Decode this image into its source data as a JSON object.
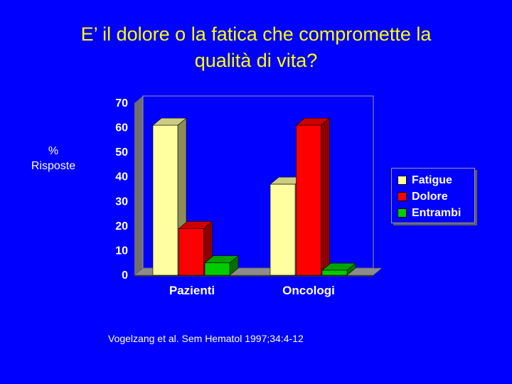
{
  "slide": {
    "title_line1": "E’ il dolore o la fatica che compromette la",
    "title_line2": "qualità di vita?",
    "citation": "Vogelzang et  al. Sem Hematol 1997;34:4-12"
  },
  "chart_data": {
    "type": "bar",
    "ylabel_line1": "%",
    "ylabel_line2": "Risposte",
    "categories": [
      "Pazienti",
      "Oncologi"
    ],
    "series": [
      {
        "name": "Fatigue",
        "values": [
          61,
          37
        ],
        "color": "#ffffa0"
      },
      {
        "name": "Dolore",
        "values": [
          19,
          61
        ],
        "color": "#ff0000"
      },
      {
        "name": "Entrambi",
        "values": [
          5,
          2
        ],
        "color": "#00cc00"
      }
    ],
    "ylim": [
      0,
      70
    ],
    "yticks": [
      "0",
      "10",
      "20",
      "30",
      "40",
      "50",
      "60",
      "70"
    ],
    "grid": false,
    "legend_position": "right",
    "style": "3d"
  }
}
